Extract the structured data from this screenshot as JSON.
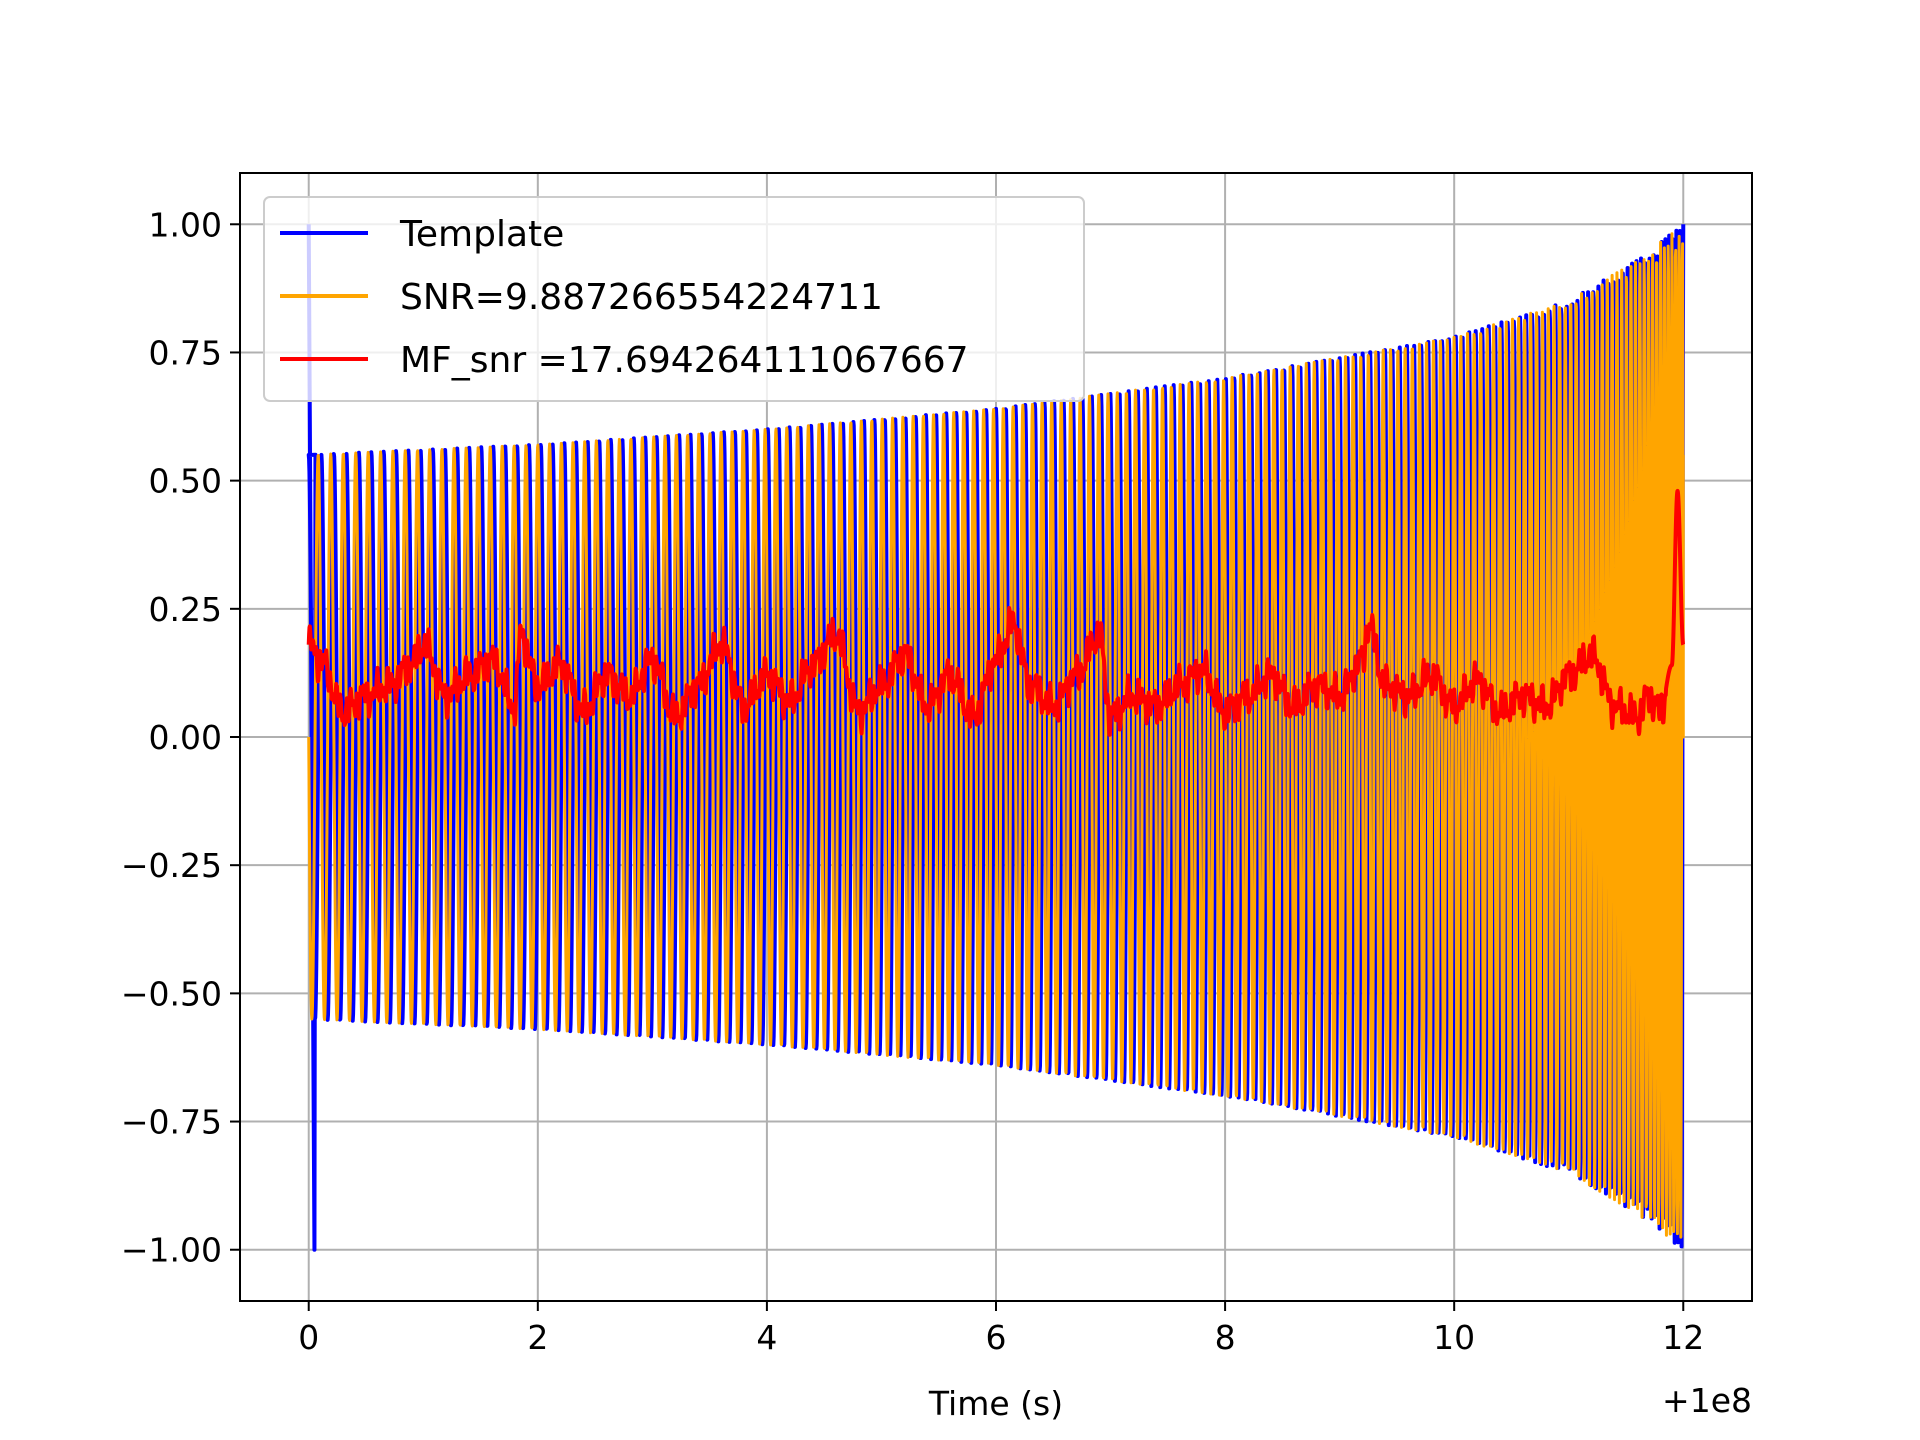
{
  "chart_data": {
    "type": "line",
    "title": "",
    "xlabel": "Time (s)",
    "ylabel": "",
    "x_offset_label": "+1e8",
    "xlim": [
      -0.6,
      12.6
    ],
    "ylim": [
      -1.1,
      1.1
    ],
    "x_ticks": [
      0,
      2,
      4,
      6,
      8,
      10,
      12
    ],
    "x_tick_labels": [
      "0",
      "2",
      "4",
      "6",
      "8",
      "10",
      "12"
    ],
    "y_ticks": [
      1.0,
      0.75,
      0.5,
      0.25,
      0.0,
      -0.25,
      -0.5,
      -0.75,
      -1.0
    ],
    "y_tick_labels": [
      "1.00",
      "0.75",
      "0.50",
      "0.25",
      "0.00",
      "−0.25",
      "−0.50",
      "−0.75",
      "−1.00"
    ],
    "grid": true,
    "legend_position": "top-left",
    "series": [
      {
        "name": "Template",
        "color": "#0000ff",
        "kind": "chirp",
        "start_spike": [
          1.0,
          -1.0
        ],
        "envelope_t": [
          0,
          2,
          4,
          6,
          8,
          10,
          11,
          11.6,
          12
        ],
        "envelope_v": [
          0.55,
          0.57,
          0.6,
          0.64,
          0.7,
          0.78,
          0.85,
          0.93,
          1.0
        ],
        "cycles": 160,
        "t_start": 0,
        "t_end": 12
      },
      {
        "name": "SNR=9.887266554224711",
        "color": "#ffa500",
        "kind": "chirp",
        "envelope_t": [
          0,
          2,
          4,
          6,
          8,
          10,
          11,
          11.6,
          12
        ],
        "envelope_v": [
          0.55,
          0.57,
          0.6,
          0.64,
          0.7,
          0.78,
          0.85,
          0.93,
          1.0
        ],
        "cycles": 160,
        "t_start": 0,
        "t_end": 12,
        "end_value": 0.55
      },
      {
        "name": "MF_snr =17.694264111067667",
        "color": "#ff0000",
        "kind": "line",
        "x": [
          0,
          0.1,
          0.3,
          0.5,
          0.7,
          0.9,
          1.0,
          1.2,
          1.4,
          1.6,
          1.8,
          1.85,
          2.0,
          2.2,
          2.4,
          2.6,
          2.8,
          3.0,
          3.2,
          3.4,
          3.6,
          3.8,
          4.0,
          4.2,
          4.4,
          4.6,
          4.8,
          5.0,
          5.2,
          5.4,
          5.6,
          5.8,
          6.0,
          6.15,
          6.3,
          6.5,
          6.7,
          6.9,
          7.0,
          7.2,
          7.4,
          7.6,
          7.8,
          8.0,
          8.2,
          8.4,
          8.6,
          8.8,
          9.0,
          9.2,
          9.25,
          9.4,
          9.6,
          9.8,
          10.0,
          10.2,
          10.4,
          10.6,
          10.8,
          11.0,
          11.2,
          11.4,
          11.6,
          11.7,
          11.8,
          11.9,
          11.95,
          12.0
        ],
        "y": [
          0.18,
          0.15,
          0.05,
          0.08,
          0.1,
          0.14,
          0.18,
          0.08,
          0.12,
          0.15,
          0.06,
          0.2,
          0.1,
          0.14,
          0.05,
          0.12,
          0.08,
          0.15,
          0.04,
          0.1,
          0.18,
          0.06,
          0.12,
          0.07,
          0.14,
          0.2,
          0.05,
          0.1,
          0.16,
          0.06,
          0.12,
          0.04,
          0.15,
          0.22,
          0.1,
          0.06,
          0.12,
          0.2,
          0.04,
          0.08,
          0.06,
          0.1,
          0.13,
          0.05,
          0.08,
          0.12,
          0.06,
          0.1,
          0.08,
          0.15,
          0.22,
          0.1,
          0.08,
          0.12,
          0.06,
          0.11,
          0.05,
          0.08,
          0.06,
          0.12,
          0.16,
          0.06,
          0.04,
          0.08,
          0.05,
          0.14,
          0.48,
          0.18
        ]
      }
    ]
  }
}
